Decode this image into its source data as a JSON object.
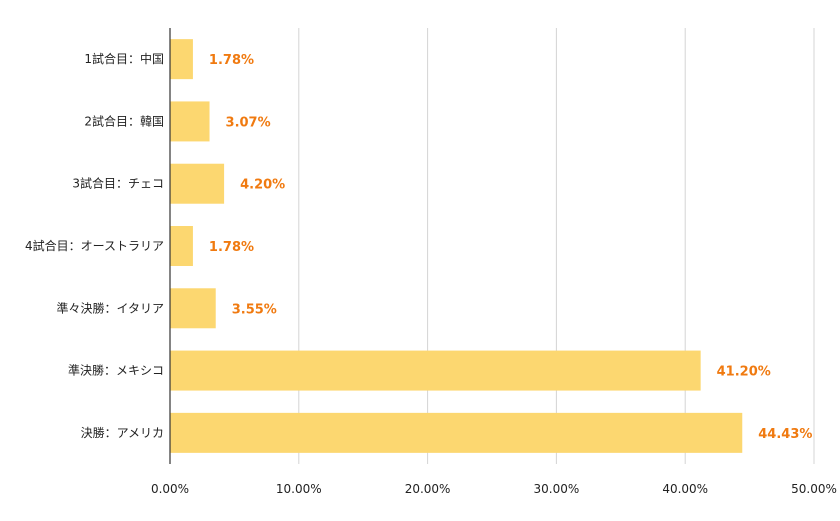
{
  "chart_data": {
    "type": "bar",
    "orientation": "horizontal",
    "categories": [
      "1試合目：中国",
      "2試合目：韓国",
      "3試合目：チェコ",
      "4試合目：オーストラリア",
      "準々決勝：イタリア",
      "準決勝：メキシコ",
      "決勝：アメリカ"
    ],
    "values": [
      1.78,
      3.07,
      4.2,
      1.78,
      3.55,
      41.2,
      44.43
    ],
    "value_labels": [
      "1.78%",
      "3.07%",
      "4.20%",
      "1.78%",
      "3.55%",
      "41.20%",
      "44.43%"
    ],
    "xlim": [
      0,
      50
    ],
    "xticks": [
      0,
      10,
      20,
      30,
      40,
      50
    ],
    "xtick_labels": [
      "0.00%",
      "10.00%",
      "20.00%",
      "30.00%",
      "40.00%",
      "50.00%"
    ],
    "grid": "vertical",
    "legend": "none",
    "colors": {
      "bar": "#fcd770",
      "value_label": "#f07a10",
      "grid": "#d4d4d4",
      "axis": "#333333"
    }
  }
}
